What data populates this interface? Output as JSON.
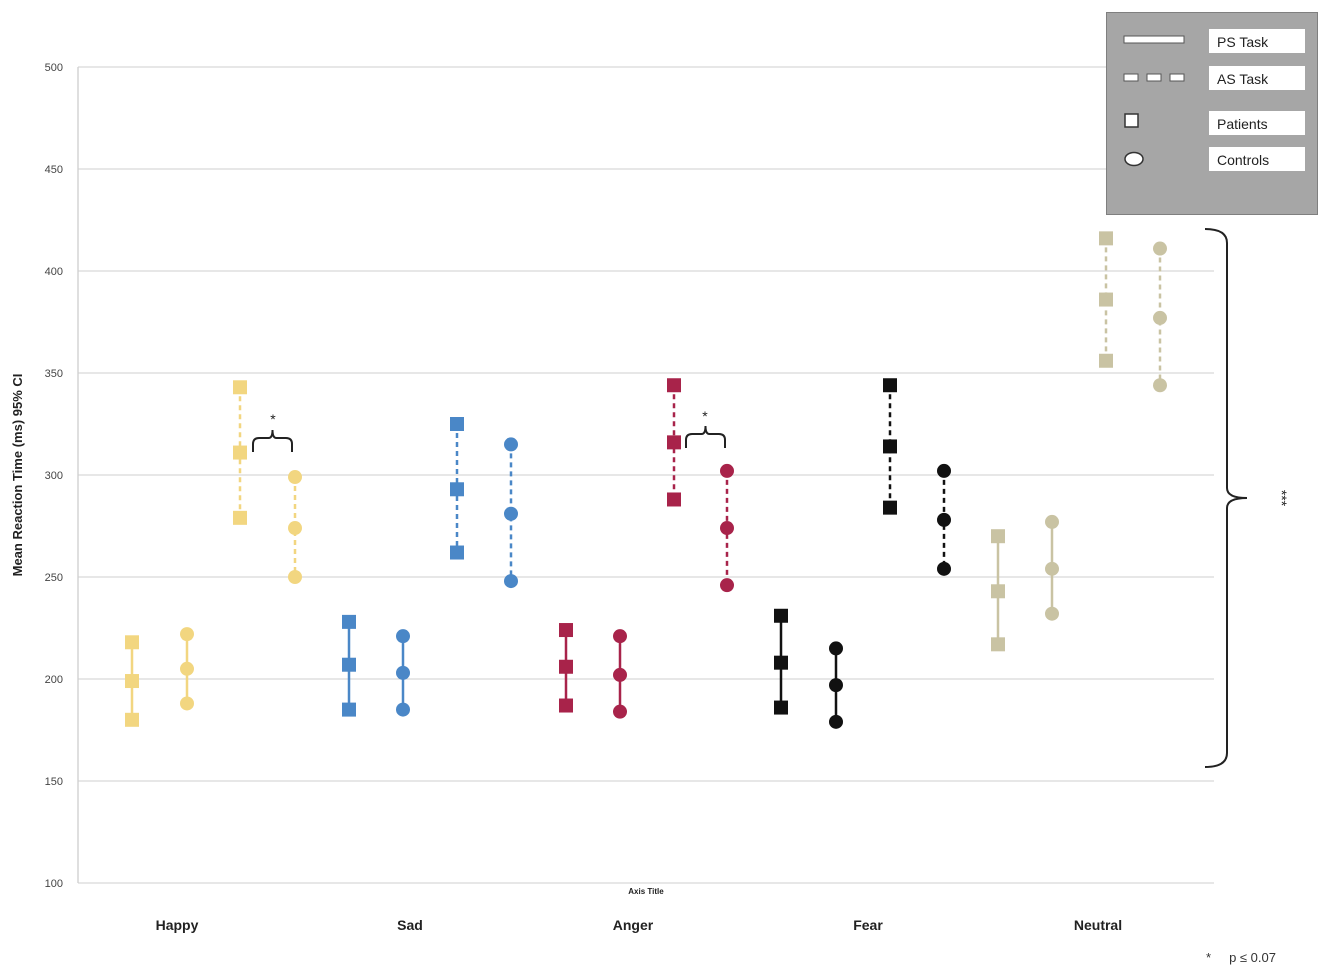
{
  "chart_data": {
    "type": "scatter",
    "ylabel": "Mean Reaction Time (ms) 95% CI",
    "xlabel": "Axis Title",
    "ylim": [
      100,
      500
    ],
    "yticks": [
      100,
      150,
      200,
      250,
      300,
      350,
      400,
      450,
      500
    ],
    "grid": true,
    "categories": [
      "Happy",
      "Sad",
      "Anger",
      "Fear",
      "Neutral"
    ],
    "colors": {
      "Happy": "#f2d680",
      "Sad": "#4a87c7",
      "Anger": "#a8234a",
      "Fear": "#111111",
      "Neutral": "#c9c3a3"
    },
    "points": [
      {
        "category": "Happy",
        "task": "PS",
        "group": "Patients",
        "low": 180,
        "mean": 199,
        "high": 218
      },
      {
        "category": "Happy",
        "task": "PS",
        "group": "Controls",
        "low": 188,
        "mean": 205,
        "high": 222
      },
      {
        "category": "Happy",
        "task": "AS",
        "group": "Patients",
        "low": 279,
        "mean": 311,
        "high": 343
      },
      {
        "category": "Happy",
        "task": "AS",
        "group": "Controls",
        "low": 250,
        "mean": 274,
        "high": 299
      },
      {
        "category": "Sad",
        "task": "PS",
        "group": "Patients",
        "low": 185,
        "mean": 207,
        "high": 228
      },
      {
        "category": "Sad",
        "task": "PS",
        "group": "Controls",
        "low": 185,
        "mean": 203,
        "high": 221
      },
      {
        "category": "Sad",
        "task": "AS",
        "group": "Patients",
        "low": 262,
        "mean": 293,
        "high": 325
      },
      {
        "category": "Sad",
        "task": "AS",
        "group": "Controls",
        "low": 248,
        "mean": 281,
        "high": 315
      },
      {
        "category": "Anger",
        "task": "PS",
        "group": "Patients",
        "low": 187,
        "mean": 206,
        "high": 224
      },
      {
        "category": "Anger",
        "task": "PS",
        "group": "Controls",
        "low": 184,
        "mean": 202,
        "high": 221
      },
      {
        "category": "Anger",
        "task": "AS",
        "group": "Patients",
        "low": 288,
        "mean": 316,
        "high": 344
      },
      {
        "category": "Anger",
        "task": "AS",
        "group": "Controls",
        "low": 246,
        "mean": 274,
        "high": 302
      },
      {
        "category": "Fear",
        "task": "PS",
        "group": "Patients",
        "low": 186,
        "mean": 208,
        "high": 231
      },
      {
        "category": "Fear",
        "task": "PS",
        "group": "Controls",
        "low": 179,
        "mean": 197,
        "high": 215
      },
      {
        "category": "Fear",
        "task": "AS",
        "group": "Patients",
        "low": 284,
        "mean": 314,
        "high": 344
      },
      {
        "category": "Fear",
        "task": "AS",
        "group": "Controls",
        "low": 254,
        "mean": 278,
        "high": 302
      },
      {
        "category": "Neutral",
        "task": "PS",
        "group": "Patients",
        "low": 217,
        "mean": 243,
        "high": 270
      },
      {
        "category": "Neutral",
        "task": "PS",
        "group": "Controls",
        "low": 232,
        "mean": 254,
        "high": 277
      },
      {
        "category": "Neutral",
        "task": "AS",
        "group": "Patients",
        "low": 356,
        "mean": 386,
        "high": 416
      },
      {
        "category": "Neutral",
        "task": "AS",
        "group": "Controls",
        "low": 344,
        "mean": 377,
        "high": 411
      }
    ],
    "annotations": [
      {
        "text": "*",
        "category": "Happy",
        "compare": "AS Patients vs AS Controls"
      },
      {
        "text": "*",
        "category": "Anger",
        "compare": "AS Patients vs AS Controls"
      },
      {
        "text": "***",
        "compare": "Neutral AS vs all others"
      }
    ],
    "legend": {
      "placement": "top-right",
      "entries": [
        "PS Task",
        "AS Task",
        "Patients",
        "Controls"
      ]
    }
  },
  "footnote": {
    "star": "*",
    "text": "p ≤ 0.07"
  }
}
